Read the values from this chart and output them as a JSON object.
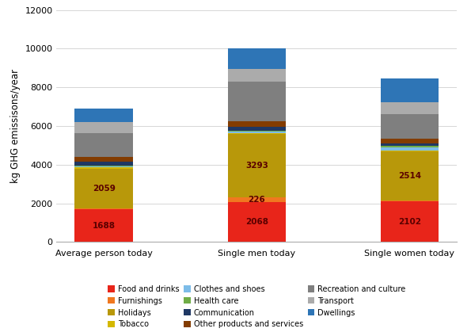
{
  "categories": [
    "Average person today",
    "Single men today",
    "Single women today"
  ],
  "segments": [
    {
      "label": "Food and drinks",
      "color": "#E8251A",
      "values": [
        1688,
        2068,
        2102
      ]
    },
    {
      "label": "Furnishings",
      "color": "#F07820",
      "values": [
        55,
        226,
        60
      ]
    },
    {
      "label": "Holidays",
      "color": "#B8980A",
      "values": [
        2059,
        3293,
        2514
      ]
    },
    {
      "label": "Tobacco",
      "color": "#D4B800",
      "values": [
        45,
        55,
        38
      ]
    },
    {
      "label": "Clothes and shoes",
      "color": "#7DBCE8",
      "values": [
        70,
        70,
        185
      ]
    },
    {
      "label": "Health care",
      "color": "#70AD47",
      "values": [
        50,
        45,
        70
      ]
    },
    {
      "label": "Communication",
      "color": "#1F3864",
      "values": [
        175,
        185,
        130
      ]
    },
    {
      "label": "Other products and services",
      "color": "#833C00",
      "values": [
        270,
        310,
        265
      ]
    },
    {
      "label": "Recreation and culture",
      "color": "#7F7F7F",
      "values": [
        1210,
        2060,
        1270
      ]
    },
    {
      "label": "Transport",
      "color": "#ABABAB",
      "values": [
        575,
        636,
        617
      ]
    },
    {
      "label": "Dwellings",
      "color": "#2E75B6",
      "values": [
        703,
        1052,
        1199
      ]
    }
  ],
  "bar_annotations": [
    {
      "bar": 0,
      "segment": "Food and drinks",
      "text": "1688"
    },
    {
      "bar": 0,
      "segment": "Holidays",
      "text": "2059"
    },
    {
      "bar": 1,
      "segment": "Food and drinks",
      "text": "2068"
    },
    {
      "bar": 1,
      "segment": "Furnishings",
      "text": "226"
    },
    {
      "bar": 1,
      "segment": "Holidays",
      "text": "3293"
    },
    {
      "bar": 2,
      "segment": "Food and drinks",
      "text": "2102"
    },
    {
      "bar": 2,
      "segment": "Holidays",
      "text": "2514"
    }
  ],
  "ylabel": "kg GHG emissisons/year",
  "ylim": [
    0,
    12000
  ],
  "yticks": [
    0,
    2000,
    4000,
    6000,
    8000,
    10000,
    12000
  ],
  "bar_width": 0.38,
  "figsize": [
    5.95,
    4.24
  ],
  "dpi": 100,
  "bg_color": "#FFFFFF",
  "annotation_fontsize": 7.5,
  "ylabel_fontsize": 8.5,
  "tick_fontsize": 8.0,
  "legend_fontsize": 7.0,
  "annotation_color": "#5A0000"
}
